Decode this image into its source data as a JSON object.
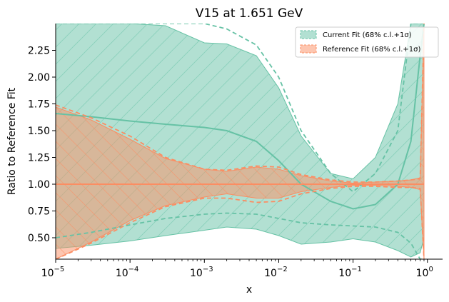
{
  "chart_data": {
    "type": "area",
    "title": "V15 at 1.651 GeV",
    "xlabel": "x",
    "ylabel": "Ratio to Reference Fit",
    "xscale": "log",
    "xlim": [
      1e-05,
      1.6
    ],
    "ylim": [
      0.3,
      2.5
    ],
    "grid": false,
    "legend_position": "top-right",
    "x_ticks": [
      {
        "label_base": "10",
        "label_exp": "−5"
      },
      {
        "label_base": "10",
        "label_exp": "−4"
      },
      {
        "label_base": "10",
        "label_exp": "−3"
      },
      {
        "label_base": "10",
        "label_exp": "−2"
      },
      {
        "label_base": "10",
        "label_exp": "−1"
      },
      {
        "label_base": "10",
        "label_exp": "0"
      }
    ],
    "y_ticks": [
      "0.50",
      "0.75",
      "1.00",
      "1.25",
      "1.50",
      "1.75",
      "2.00",
      "2.25"
    ],
    "series": [
      {
        "name": "Current Fit (68% c.l.+1σ)",
        "color": "#66c2a5",
        "x": [
          1e-05,
          3e-05,
          0.0001,
          0.0003,
          0.001,
          0.002,
          0.005,
          0.01,
          0.02,
          0.05,
          0.1,
          0.2,
          0.4,
          0.6,
          0.8,
          0.9
        ],
        "central": [
          1.66,
          1.63,
          1.59,
          1.56,
          1.53,
          1.5,
          1.4,
          1.22,
          1.0,
          0.84,
          0.77,
          0.81,
          1.0,
          1.4,
          2.2,
          2.5
        ],
        "band_lower": [
          0.4,
          0.43,
          0.47,
          0.52,
          0.57,
          0.6,
          0.58,
          0.52,
          0.44,
          0.46,
          0.49,
          0.46,
          0.38,
          0.32,
          0.36,
          0.5
        ],
        "band_upper": [
          2.5,
          2.5,
          2.5,
          2.48,
          2.32,
          2.31,
          2.2,
          1.9,
          1.45,
          1.1,
          1.05,
          1.25,
          1.75,
          2.5,
          2.5,
          2.5
        ],
        "dashed_lower": [
          0.5,
          0.55,
          0.62,
          0.68,
          0.72,
          0.73,
          0.72,
          0.68,
          0.64,
          0.62,
          0.61,
          0.6,
          0.55,
          0.45,
          0.3,
          0.3
        ],
        "dashed_upper": [
          2.5,
          2.5,
          2.5,
          2.5,
          2.5,
          2.45,
          2.3,
          2.0,
          1.5,
          1.1,
          0.93,
          1.1,
          1.5,
          2.5,
          2.5,
          2.5
        ]
      },
      {
        "name": "Reference Fit (68% c.l.+1σ)",
        "color": "#fc8d62",
        "x": [
          1e-05,
          3e-05,
          0.0001,
          0.0003,
          0.001,
          0.002,
          0.005,
          0.01,
          0.02,
          0.05,
          0.1,
          0.2,
          0.4,
          0.6,
          0.8,
          0.9
        ],
        "central": [
          1.0,
          1.0,
          1.0,
          1.0,
          1.0,
          1.0,
          1.0,
          1.0,
          1.0,
          1.0,
          1.0,
          1.0,
          1.0,
          1.0,
          1.0,
          1.0
        ],
        "band_lower": [
          0.3,
          0.46,
          0.66,
          0.8,
          0.88,
          0.91,
          0.87,
          0.87,
          0.93,
          0.97,
          0.99,
          0.99,
          0.98,
          0.97,
          0.95,
          0.3
        ],
        "band_upper": [
          1.72,
          1.6,
          1.42,
          1.24,
          1.14,
          1.12,
          1.16,
          1.14,
          1.08,
          1.03,
          1.01,
          1.02,
          1.03,
          1.04,
          1.06,
          2.5
        ],
        "dashed_lower": [
          0.3,
          0.45,
          0.64,
          0.79,
          0.87,
          0.87,
          0.83,
          0.84,
          0.91,
          0.96,
          0.98,
          0.98,
          0.97,
          0.97,
          0.96,
          0.3
        ],
        "dashed_upper": [
          1.74,
          1.62,
          1.45,
          1.25,
          1.14,
          1.13,
          1.17,
          1.16,
          1.09,
          1.04,
          1.02,
          1.02,
          1.03,
          1.04,
          1.05,
          2.5
        ]
      }
    ]
  }
}
